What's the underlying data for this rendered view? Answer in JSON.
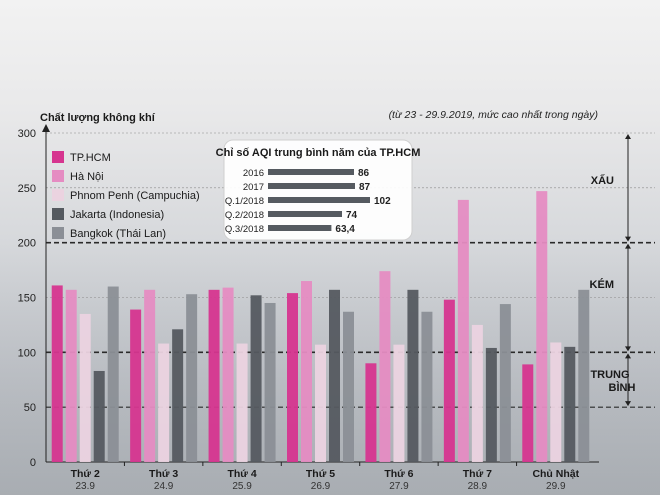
{
  "chart_data": {
    "type": "bar",
    "ylabel": "Chất lượng không khí",
    "note": "(từ 23 - 29.9.2019, mức cao nhất trong ngày)",
    "ylim": [
      0,
      300
    ],
    "yticks": [
      0,
      50,
      100,
      150,
      200,
      250,
      300
    ],
    "categories": [
      {
        "name": "Thứ 2",
        "date": "23.9"
      },
      {
        "name": "Thứ 3",
        "date": "24.9"
      },
      {
        "name": "Thứ 4",
        "date": "25.9"
      },
      {
        "name": "Thứ 5",
        "date": "26.9"
      },
      {
        "name": "Thứ 6",
        "date": "27.9"
      },
      {
        "name": "Thứ 7",
        "date": "28.9"
      },
      {
        "name": "Chủ Nhật",
        "date": "29.9"
      }
    ],
    "series": [
      {
        "name": "TP.HCM",
        "color": "#d6358f",
        "values": [
          161,
          139,
          157,
          154,
          90,
          148,
          89
        ]
      },
      {
        "name": "Hà Nội",
        "color": "#e58cc2",
        "values": [
          157,
          157,
          159,
          165,
          174,
          239,
          247
        ]
      },
      {
        "name": "Phnom Penh (Campuchia)",
        "color": "#ebd3e0",
        "values": [
          135,
          108,
          108,
          107,
          107,
          125,
          109
        ]
      },
      {
        "name": "Jakarta (Indonesia)",
        "color": "#555a60",
        "values": [
          83,
          121,
          152,
          157,
          157,
          104,
          105
        ]
      },
      {
        "name": "Bangkok (Thái Lan)",
        "color": "#8b8f96",
        "values": [
          160,
          153,
          145,
          137,
          137,
          144,
          157
        ]
      }
    ],
    "levels": [
      {
        "label": "XẤU",
        "from": 200,
        "to": 300
      },
      {
        "label": "KÉM",
        "from": 100,
        "to": 200
      },
      {
        "label": "TRUNG BÌNH",
        "from": 50,
        "to": 100
      }
    ],
    "inset": {
      "title": "Chỉ số AQI trung bình năm của TP.HCM",
      "color": "#555a60",
      "categories": [
        "2016",
        "2017",
        "Q.1/2018",
        "Q.2/2018",
        "Q.3/2018"
      ],
      "values": [
        86,
        87,
        102,
        74,
        63.4
      ],
      "value_labels": [
        "86",
        "87",
        "102",
        "74",
        "63,4"
      ]
    }
  }
}
